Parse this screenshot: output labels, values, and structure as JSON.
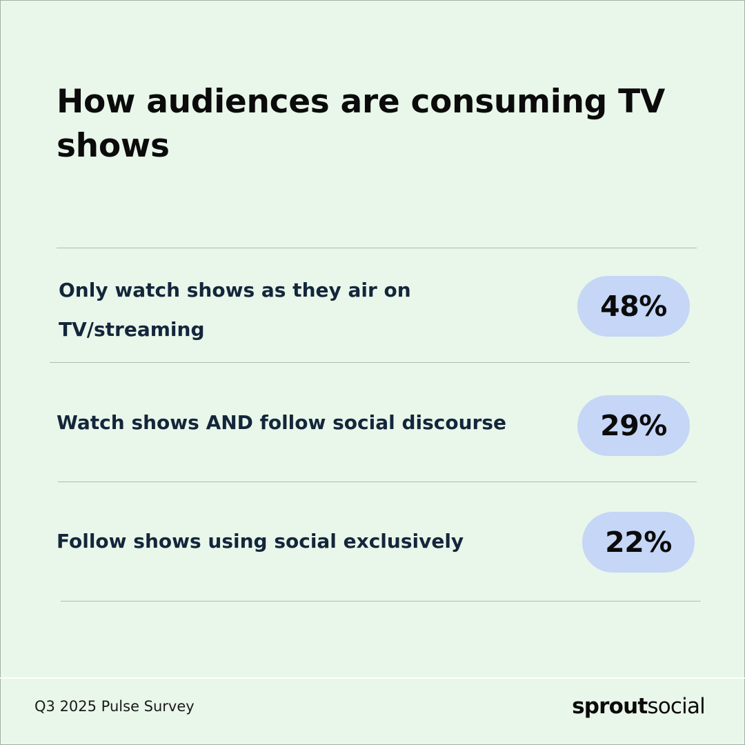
{
  "header": {
    "title": "How audiences are consuming TV shows"
  },
  "chart_data": {
    "type": "table",
    "title": "How audiences are consuming TV shows",
    "rows": [
      {
        "label": "Only watch shows as they air on TV/streaming",
        "value": 48,
        "display": "48%"
      },
      {
        "label": "Watch shows AND follow social discourse",
        "value": 29,
        "display": "29%"
      },
      {
        "label": "Follow shows using social exclusively",
        "value": 22,
        "display": "22%"
      }
    ],
    "unit": "%"
  },
  "footer": {
    "source": "Q3 2025 Pulse Survey",
    "logo_bold": "sprout",
    "logo_light": "social"
  },
  "colors": {
    "background": "#e9f6ea",
    "pill": "#c5d6f6",
    "label_text": "#13263a",
    "divider": "#aebcb1"
  }
}
